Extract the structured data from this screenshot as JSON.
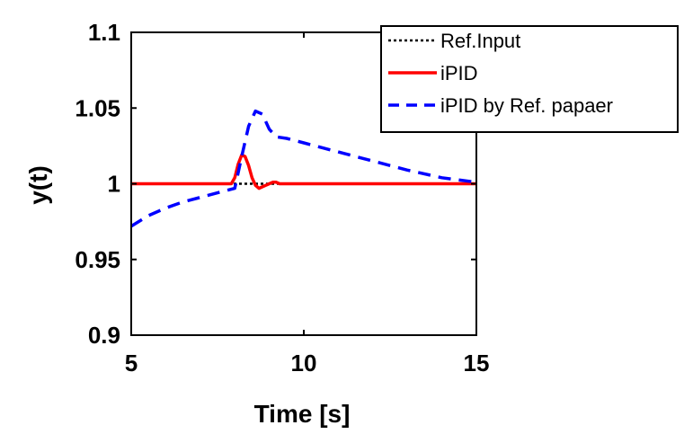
{
  "chart_data": {
    "type": "line",
    "title": "",
    "xlabel": "Time [s]",
    "ylabel": "y(t)",
    "xlim": [
      5,
      15
    ],
    "ylim": [
      0.9,
      1.1
    ],
    "xticks": [
      5,
      10,
      15
    ],
    "xtick_labels": [
      "5",
      "10",
      "15"
    ],
    "yticks": [
      0.9,
      0.95,
      1,
      1.05,
      1.1
    ],
    "ytick_labels": [
      "0.9",
      "0.95",
      "1",
      "1.05",
      "1.1"
    ],
    "grid": false,
    "legend_position": "top-right",
    "series": [
      {
        "name": "Ref.Input",
        "color": "#000000",
        "style": "dotted",
        "x": [
          5,
          15
        ],
        "y": [
          1.0,
          1.0
        ]
      },
      {
        "name": "iPID",
        "color": "#ff0000",
        "style": "solid",
        "x": [
          5,
          7.9,
          8.0,
          8.1,
          8.2,
          8.3,
          8.4,
          8.5,
          8.6,
          8.7,
          8.8,
          8.9,
          9.0,
          9.1,
          9.2,
          9.3,
          9.5,
          10,
          15
        ],
        "y": [
          1.0,
          1.0,
          1.004,
          1.013,
          1.019,
          1.018,
          1.012,
          1.004,
          0.999,
          0.997,
          0.998,
          0.999,
          1.0,
          1.001,
          1.001,
          1.0,
          1.0,
          1.0,
          1.0
        ]
      },
      {
        "name": "iPID by Ref. papaer",
        "color": "#0000ff",
        "style": "dashed",
        "x": [
          5,
          5.5,
          6,
          6.5,
          7,
          7.5,
          8,
          8.2,
          8.4,
          8.6,
          8.8,
          9.0,
          9.2,
          9.5,
          10,
          10.5,
          11,
          12,
          13,
          14,
          15
        ],
        "y": [
          0.972,
          0.979,
          0.984,
          0.988,
          0.991,
          0.994,
          0.997,
          1.018,
          1.038,
          1.048,
          1.046,
          1.036,
          1.031,
          1.03,
          1.027,
          1.024,
          1.021,
          1.015,
          1.009,
          1.004,
          1.001
        ]
      }
    ]
  }
}
